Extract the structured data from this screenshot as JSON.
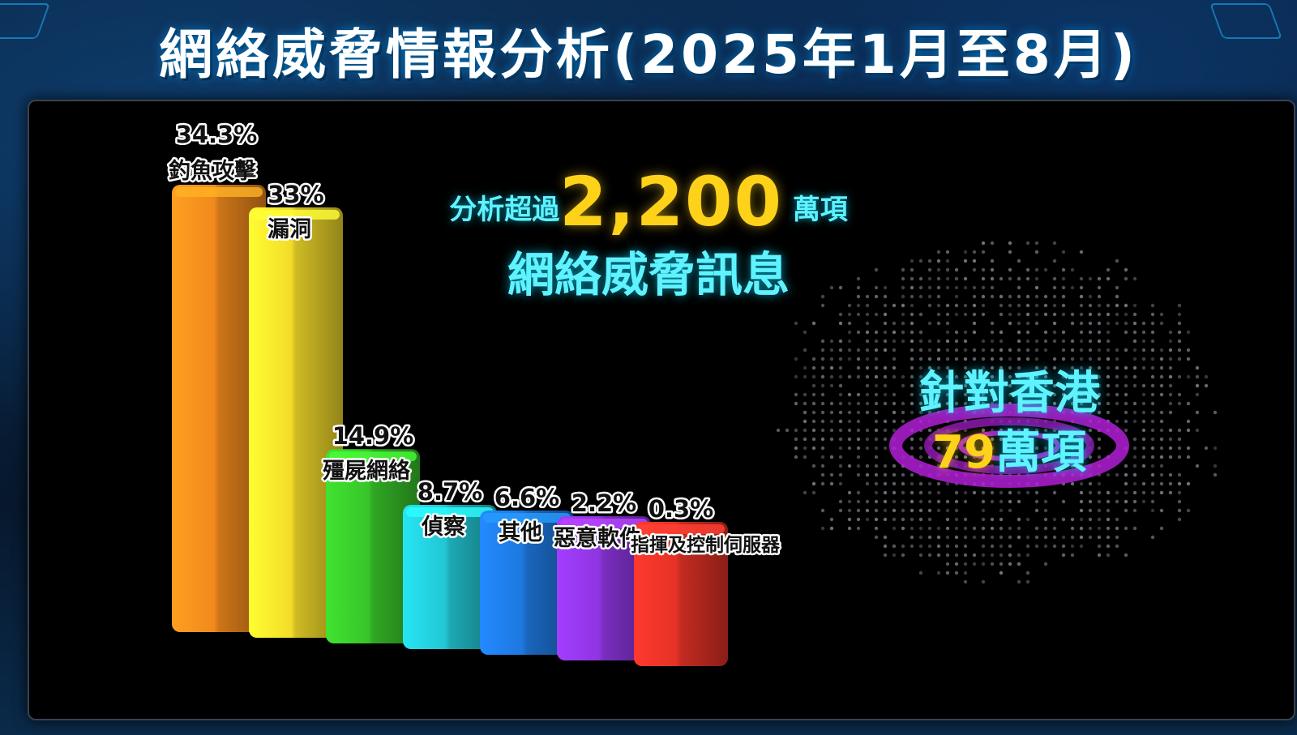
{
  "title": "網絡威脅情報分析(2025年1月至8月)",
  "headline": {
    "prefix": "分析超過",
    "number": "2,200",
    "suffix": "萬項",
    "line2": "網絡威脅訊息"
  },
  "hong_kong": {
    "line1": "針對香港",
    "number": "79",
    "unit": "萬項"
  },
  "colors": {
    "accent_cyan": "#5ff2ff",
    "accent_yellow": "#ffd21a",
    "ring_purple": "#b21fd6"
  },
  "chart_data": {
    "type": "bar",
    "categories": [
      "釣魚攻擊",
      "漏洞",
      "殭屍網絡",
      "偵察",
      "其他",
      "惡意軟件",
      "指揮及控制伺服器"
    ],
    "values": [
      34.3,
      33,
      14.9,
      8.7,
      6.6,
      2.2,
      0.3
    ],
    "value_labels": [
      "34.3%",
      "33%",
      "14.9%",
      "8.7%",
      "6.6%",
      "2.2%",
      "0.3%"
    ],
    "colors": [
      "#f08a1c",
      "#f3dc2a",
      "#38c52a",
      "#22c7d4",
      "#1e78e0",
      "#8e35e0",
      "#e53227"
    ],
    "grid": false,
    "legend": "none"
  }
}
